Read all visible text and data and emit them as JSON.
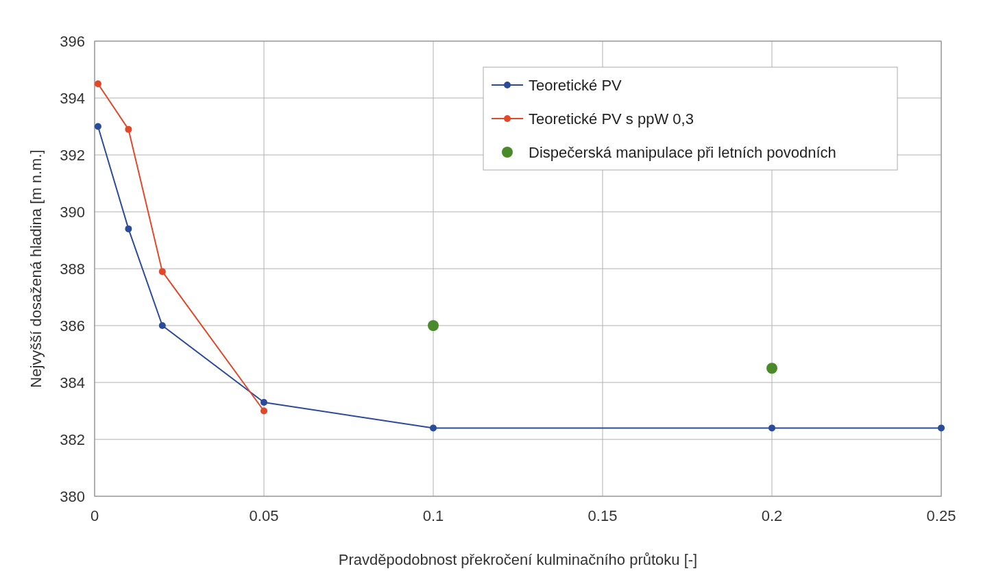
{
  "chart_data": {
    "type": "line",
    "xlabel": "Pravděpodobnost překročení kulminačního průtoku [-]",
    "ylabel": "Nejvyšší dosažená hladina [m n.m.]",
    "xlim": [
      0,
      0.25
    ],
    "xticks": [
      0,
      0.05,
      0.1,
      0.15,
      0.2,
      0.25
    ],
    "ylim": [
      380,
      396
    ],
    "yticks": [
      380,
      382,
      384,
      386,
      388,
      390,
      392,
      394,
      396
    ],
    "grid": true,
    "legend": "top right",
    "marker": "circle",
    "series": [
      {
        "name": "Teoretické PV",
        "color": "#2a4a9a",
        "x": [
          0.001,
          0.01,
          0.02,
          0.05,
          0.1,
          0.2,
          0.25
        ],
        "values": [
          393.0,
          389.4,
          386.0,
          383.3,
          382.4,
          382.4,
          382.4
        ]
      },
      {
        "name": "Teoretické PV s ppW 0,3",
        "color": "#e2472a",
        "x": [
          0.001,
          0.01,
          0.02,
          0.05
        ],
        "values": [
          394.5,
          392.9,
          387.9,
          383.0
        ]
      },
      {
        "name": "Dispečerská manipulace při letních povodních",
        "type": "scatter",
        "color": "#4a8a2a",
        "x": [
          0.1,
          0.2
        ],
        "values": [
          386.0,
          384.5
        ]
      }
    ]
  }
}
